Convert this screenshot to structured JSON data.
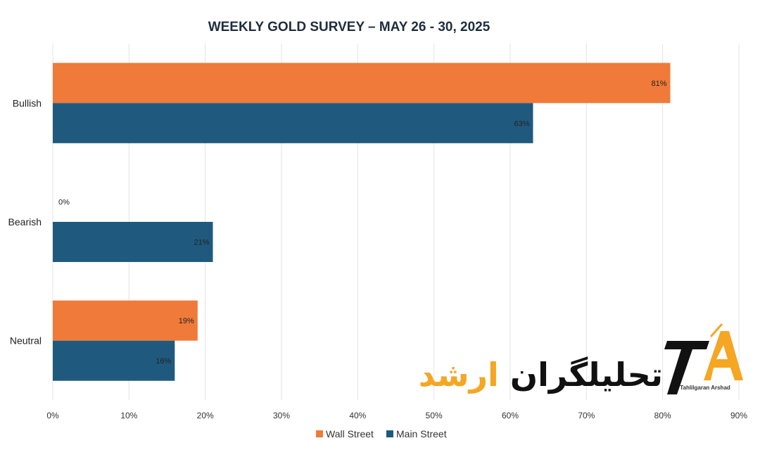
{
  "chart_data": {
    "type": "bar",
    "orientation": "horizontal",
    "title": "WEEKLY GOLD SURVEY – MAY 26 - 30, 2025",
    "categories": [
      "Bullish",
      "Bearish",
      "Neutral"
    ],
    "series": [
      {
        "name": "Wall Street",
        "color": "#f07a3a",
        "values": [
          81,
          0,
          19
        ],
        "labels": [
          "81%",
          "0%",
          "19%"
        ]
      },
      {
        "name": "Main Street",
        "color": "#1f5a7e",
        "values": [
          63,
          21,
          16
        ],
        "labels": [
          "63%",
          "21%",
          "16%"
        ]
      }
    ],
    "xlim": [
      0,
      90
    ],
    "xticks": [
      0,
      10,
      20,
      30,
      40,
      50,
      60,
      70,
      80,
      90
    ],
    "xtick_labels": [
      "0%",
      "10%",
      "20%",
      "30%",
      "40%",
      "50%",
      "60%",
      "70%",
      "80%",
      "90%"
    ],
    "grid": true,
    "legend_position": "bottom-center"
  },
  "logo": {
    "persian_text": "تحلیلگران ارشد",
    "latin_text": "Tahlilgaran Arshad",
    "accent_color": "#f5a623",
    "dark_color": "#111111"
  }
}
